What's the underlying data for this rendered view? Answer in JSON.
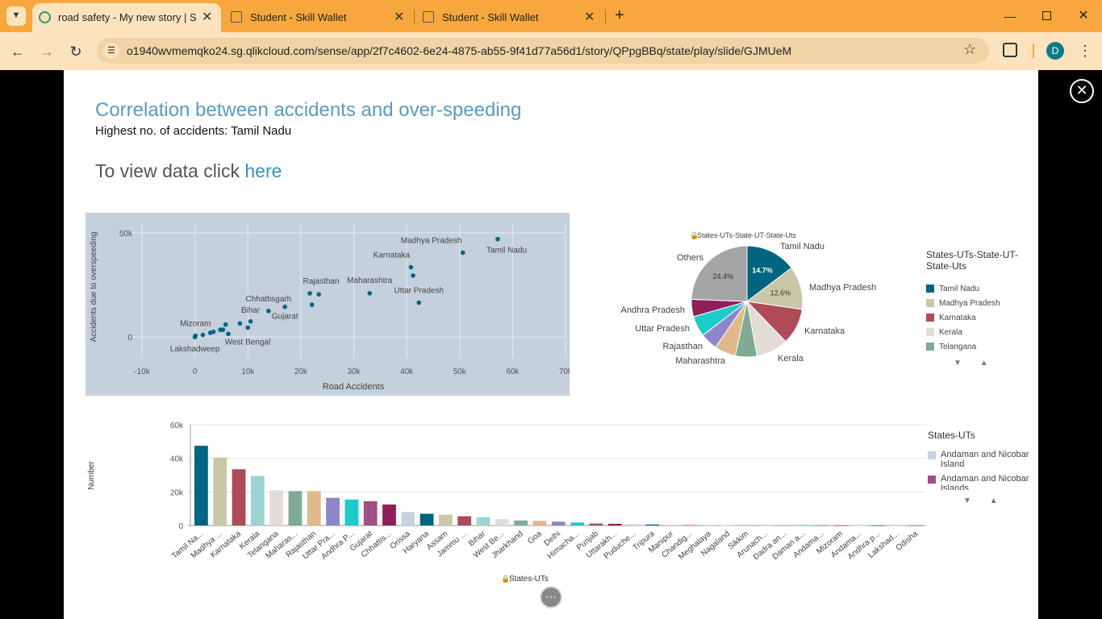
{
  "browser": {
    "tabs": [
      {
        "title": "road safety - My new story | Sto",
        "active": true
      },
      {
        "title": "Student - Skill Wallet",
        "active": false
      },
      {
        "title": "Student - Skill Wallet",
        "active": false
      }
    ],
    "url": "o1940wvmemqko24.sg.qlikcloud.com/sense/app/2f7c4602-6e24-4875-ab55-9f41d77a56d1/story/QPpgBBq/state/play/slide/GJMUeM",
    "profile_initial": "D",
    "accent": "#f7a73d"
  },
  "slide": {
    "title": "Correlation between accidents and over-speeding",
    "subtitle": "Highest no. of accidents: Tamil Nadu",
    "view_text": "To view data click ",
    "view_link": "here"
  },
  "chart_data": [
    {
      "type": "scatter",
      "xlabel": "Road Accidents",
      "ylabel": "Accidents due to overspeeding",
      "xlim": [
        -10000,
        70000
      ],
      "ylim": [
        -10000,
        55000
      ],
      "xticks": [
        "-10k",
        "0",
        "10k",
        "20k",
        "30k",
        "40k",
        "50k",
        "60k",
        "70k"
      ],
      "yticks": [
        "0",
        "50k"
      ],
      "points": [
        {
          "label": "Tamil Nadu",
          "x": 57200,
          "y": 47000
        },
        {
          "label": "Madhya Pradesh",
          "x": 50600,
          "y": 40500
        },
        {
          "label": "Karnataka",
          "x": 40800,
          "y": 33500
        },
        {
          "label": "",
          "x": 41200,
          "y": 29500
        },
        {
          "label": "Uttar Pradesh",
          "x": 42300,
          "y": 16500
        },
        {
          "label": "Maharashtra",
          "x": 33000,
          "y": 21000
        },
        {
          "label": "Rajasthan",
          "x": 21700,
          "y": 21000
        },
        {
          "label": "",
          "x": 23400,
          "y": 20500
        },
        {
          "label": "",
          "x": 22100,
          "y": 15500
        },
        {
          "label": "Chhattisgarh",
          "x": 13900,
          "y": 12500
        },
        {
          "label": "Gujarat",
          "x": 17000,
          "y": 14500
        },
        {
          "label": "Bihar",
          "x": 10500,
          "y": 7500
        },
        {
          "label": "",
          "x": 10000,
          "y": 4500
        },
        {
          "label": "",
          "x": 8500,
          "y": 6500
        },
        {
          "label": "West Bengal",
          "x": 6300,
          "y": 1500
        },
        {
          "label": "",
          "x": 5800,
          "y": 6000
        },
        {
          "label": "",
          "x": 5300,
          "y": 3500
        },
        {
          "label": "",
          "x": 4800,
          "y": 3500
        },
        {
          "label": "",
          "x": 3500,
          "y": 2500
        },
        {
          "label": "",
          "x": 2900,
          "y": 2000
        },
        {
          "label": "",
          "x": 1500,
          "y": 1000
        },
        {
          "label": "Mizoram",
          "x": 100,
          "y": 600
        },
        {
          "label": "Lakshadweep",
          "x": 0,
          "y": 0
        }
      ]
    },
    {
      "type": "pie",
      "title": "States-UTs-State-UT-State-Uts",
      "legend_title": "States-UTs-State-UT-State-Uts",
      "slices": [
        {
          "name": "Tamil Nadu",
          "pct": 14.7,
          "color": "#006580",
          "shown_pct": "14.7%"
        },
        {
          "name": "Madhya Pradesh",
          "pct": 12.6,
          "color": "#c8c8a8",
          "shown_pct": "12.6%"
        },
        {
          "name": "Karnataka",
          "pct": 10.5,
          "color": "#b04a57",
          "shown_pct": ""
        },
        {
          "name": "Kerala",
          "pct": 9.3,
          "color": "#e3dcd6",
          "shown_pct": ""
        },
        {
          "name": "Maharashtra",
          "pct": 6.3,
          "color": "#7fab94",
          "shown_pct": ""
        },
        {
          "name": "Rajasthan",
          "pct": 6.2,
          "color": "#e2b98a",
          "shown_pct": ""
        },
        {
          "name": "Uttar Pradesh",
          "pct": 5.0,
          "color": "#8f86c9",
          "shown_pct": ""
        },
        {
          "name": "Andhra Pradesh",
          "pct": 6.0,
          "color": "#1ecbcb",
          "shown_pct": ""
        },
        {
          "name": "",
          "pct": 5.0,
          "color": "#8e1f58",
          "shown_pct": ""
        },
        {
          "name": "Others",
          "pct": 24.4,
          "color": "#a5a5a5",
          "shown_pct": "24.4%"
        }
      ],
      "legend": [
        {
          "name": "Tamil Nadu",
          "color": "#006580"
        },
        {
          "name": "Madhya Pradesh",
          "color": "#c8c8a8"
        },
        {
          "name": "Karnataka",
          "color": "#b04a57"
        },
        {
          "name": "Kerala",
          "color": "#e3dcd6"
        },
        {
          "name": "Telangana",
          "color": "#7fab94"
        }
      ]
    },
    {
      "type": "bar",
      "ylabel": "Number",
      "xlabel": "States-UTs",
      "ylim": [
        0,
        60000
      ],
      "yticks": [
        "0",
        "20k",
        "40k",
        "60k"
      ],
      "legend_title": "States-UTs",
      "legend": [
        {
          "name": "Andaman and Nicobar Island",
          "color": "#c6d3de"
        },
        {
          "name": "Andaman and Nicobar Islands",
          "color": "#a04f86"
        }
      ],
      "bars": [
        {
          "label": "Tamil Na...",
          "value": 47500,
          "color": "#006580"
        },
        {
          "label": "Madhya ...",
          "value": 40500,
          "color": "#c8c8a8"
        },
        {
          "label": "Karnataka",
          "value": 33500,
          "color": "#b04a57"
        },
        {
          "label": "Kerala",
          "value": 29500,
          "color": "#9dd3d0"
        },
        {
          "label": "Telangana",
          "value": 21000,
          "color": "#e3dcd6"
        },
        {
          "label": "Maharas...",
          "value": 20500,
          "color": "#7fab94"
        },
        {
          "label": "Rajasthan",
          "value": 20500,
          "color": "#e2b98a"
        },
        {
          "label": "Uttar Pra...",
          "value": 16500,
          "color": "#8f86c9"
        },
        {
          "label": "Andhra P...",
          "value": 15500,
          "color": "#1ecbcb"
        },
        {
          "label": "Gujarat",
          "value": 14500,
          "color": "#a04f86"
        },
        {
          "label": "Chhattis...",
          "value": 12500,
          "color": "#8e1f58"
        },
        {
          "label": "Orissa",
          "value": 8000,
          "color": "#c6d3de"
        },
        {
          "label": "Haryana",
          "value": 7000,
          "color": "#006580"
        },
        {
          "label": "Assam",
          "value": 6500,
          "color": "#c8c8a8"
        },
        {
          "label": "Jammu ...",
          "value": 5500,
          "color": "#b04a57"
        },
        {
          "label": "Bihar",
          "value": 5000,
          "color": "#9dd3d0"
        },
        {
          "label": "West Be...",
          "value": 3800,
          "color": "#e3dcd6"
        },
        {
          "label": "Jharkhand",
          "value": 3000,
          "color": "#7fab94"
        },
        {
          "label": "Goa",
          "value": 2800,
          "color": "#e2b98a"
        },
        {
          "label": "Delhi",
          "value": 2300,
          "color": "#8f86c9"
        },
        {
          "label": "Himacha...",
          "value": 1800,
          "color": "#1ecbcb"
        },
        {
          "label": "Punjab",
          "value": 1200,
          "color": "#a04f86"
        },
        {
          "label": "Uttarakh...",
          "value": 1000,
          "color": "#8e1f58"
        },
        {
          "label": "Puduche...",
          "value": 800,
          "color": "#c6d3de"
        },
        {
          "label": "Tripura",
          "value": 600,
          "color": "#006580"
        },
        {
          "label": "Manipur",
          "value": 300,
          "color": "#c8c8a8"
        },
        {
          "label": "Chandig...",
          "value": 250,
          "color": "#b04a57"
        },
        {
          "label": "Meghalaya",
          "value": 200,
          "color": "#9dd3d0"
        },
        {
          "label": "Nagaland",
          "value": 150,
          "color": "#e3dcd6"
        },
        {
          "label": "Sikkim",
          "value": 120,
          "color": "#7fab94"
        },
        {
          "label": "Arunach...",
          "value": 100,
          "color": "#e2b98a"
        },
        {
          "label": "Dadra an...",
          "value": 80,
          "color": "#8f86c9"
        },
        {
          "label": "Daman a...",
          "value": 60,
          "color": "#1ecbcb"
        },
        {
          "label": "Andama...",
          "value": 50,
          "color": "#a04f86"
        },
        {
          "label": "Mizoram",
          "value": 40,
          "color": "#8e1f58"
        },
        {
          "label": "Andama...",
          "value": 30,
          "color": "#c6d3de"
        },
        {
          "label": "Andhra p...",
          "value": 20,
          "color": "#006580"
        },
        {
          "label": "Lakshad...",
          "value": 10,
          "color": "#c8c8a8"
        },
        {
          "label": "Odisha",
          "value": 5,
          "color": "#b04a57"
        }
      ]
    }
  ]
}
